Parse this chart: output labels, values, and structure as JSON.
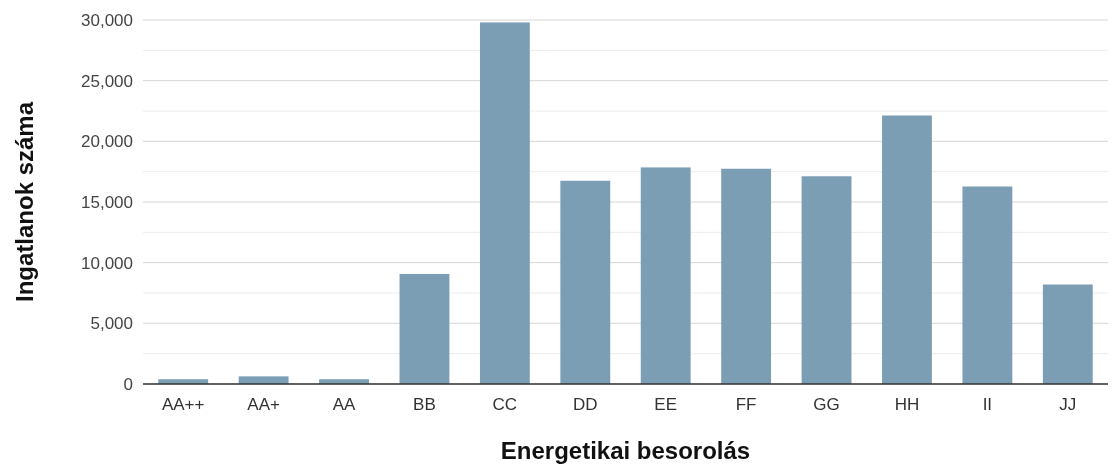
{
  "chart_data": {
    "type": "bar",
    "xlabel": "Energetikai besorolás",
    "ylabel": "Ingatlanok száma",
    "categories": [
      "AA++",
      "AA+",
      "AA",
      "BB",
      "CC",
      "DD",
      "EE",
      "FF",
      "GG",
      "HH",
      "II",
      "JJ"
    ],
    "values": [
      390,
      630,
      390,
      9070,
      29800,
      16750,
      17850,
      17740,
      17120,
      22130,
      16280,
      8200
    ],
    "color": "#7b9eb5",
    "ylim": [
      0,
      30000
    ],
    "yticks": [
      {
        "value": 0,
        "label": "0"
      },
      {
        "value": 2500,
        "label": null
      },
      {
        "value": 5000,
        "label": "5,000"
      },
      {
        "value": 7500,
        "label": null
      },
      {
        "value": 10000,
        "label": "10,000"
      },
      {
        "value": 12500,
        "label": null
      },
      {
        "value": 15000,
        "label": "15,000"
      },
      {
        "value": 17500,
        "label": null
      },
      {
        "value": 20000,
        "label": "20,000"
      },
      {
        "value": 22500,
        "label": null
      },
      {
        "value": 25000,
        "label": "25,000"
      },
      {
        "value": 27500,
        "label": null
      },
      {
        "value": 30000,
        "label": "30,000"
      }
    ],
    "grid": "y"
  }
}
